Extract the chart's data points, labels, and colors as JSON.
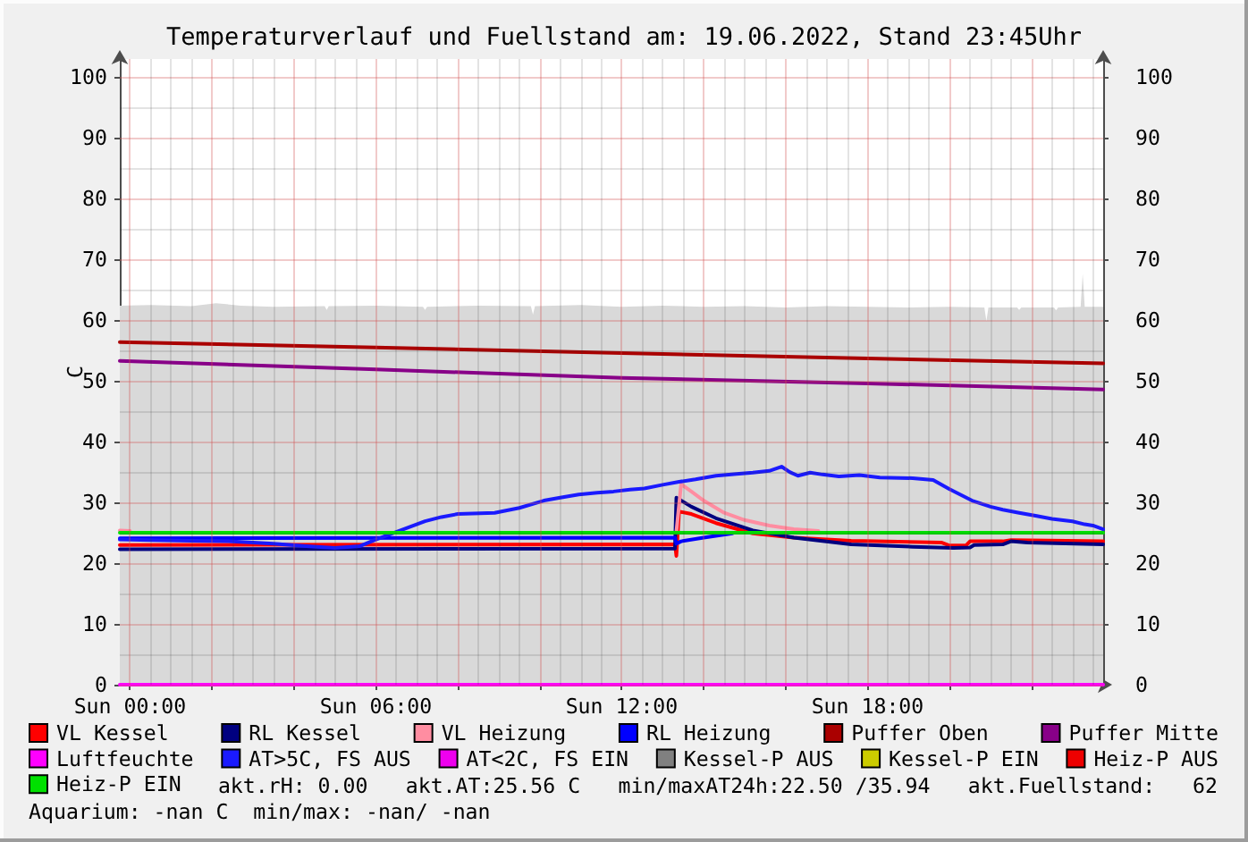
{
  "chart_data": {
    "type": "line",
    "title": "Temperaturverlauf und Fuellstand am: 19.06.2022, Stand 23:45Uhr",
    "ylabel": "C",
    "xlim": [
      "2022-06-18T23:45",
      "2022-06-19T23:45"
    ],
    "xticks": [
      {
        "value": "2022-06-19T00:00",
        "label": "Sun 00:00"
      },
      {
        "value": "2022-06-19T02:00",
        "label": null
      },
      {
        "value": "2022-06-19T04:00",
        "label": null
      },
      {
        "value": "2022-06-19T06:00",
        "label": "Sun 06:00"
      },
      {
        "value": "2022-06-19T08:00",
        "label": null
      },
      {
        "value": "2022-06-19T10:00",
        "label": null
      },
      {
        "value": "2022-06-19T12:00",
        "label": "Sun 12:00"
      },
      {
        "value": "2022-06-19T14:00",
        "label": null
      },
      {
        "value": "2022-06-19T16:00",
        "label": null
      },
      {
        "value": "2022-06-19T18:00",
        "label": "Sun 18:00"
      },
      {
        "value": "2022-06-19T20:00",
        "label": null
      },
      {
        "value": "2022-06-19T22:00",
        "label": null
      }
    ],
    "ylim": [
      0,
      103
    ],
    "yticks": [
      0,
      10,
      20,
      30,
      40,
      50,
      60,
      70,
      80,
      90,
      100
    ],
    "y2lim": [
      0,
      103
    ],
    "y2ticks": [
      0,
      10,
      20,
      30,
      40,
      50,
      60,
      70,
      80,
      90,
      100
    ],
    "grid": true,
    "legend": "bottom",
    "series": [
      {
        "type": "area",
        "color": "#d9d9d9",
        "x": [
          "2022-06-18T23:45",
          "2022-06-19T00:30",
          "2022-06-19T01:30",
          "2022-06-19T02:06",
          "2022-06-19T02:42",
          "2022-06-19T03:30",
          "2022-06-19T04:45",
          "2022-06-19T04:48",
          "2022-06-19T04:51",
          "2022-06-19T06:00",
          "2022-06-19T07:09",
          "2022-06-19T07:12",
          "2022-06-19T07:15",
          "2022-06-19T08:30",
          "2022-06-19T09:47",
          "2022-06-19T09:50",
          "2022-06-19T09:53",
          "2022-06-19T11:00",
          "2022-06-19T12:00",
          "2022-06-19T13:00",
          "2022-06-19T14:00",
          "2022-06-19T15:00",
          "2022-06-19T16:00",
          "2022-06-19T17:00",
          "2022-06-19T18:00",
          "2022-06-19T19:00",
          "2022-06-19T20:00",
          "2022-06-19T20:51",
          "2022-06-19T20:54",
          "2022-06-19T20:57",
          "2022-06-19T21:39",
          "2022-06-19T21:42",
          "2022-06-19T21:45",
          "2022-06-19T22:33",
          "2022-06-19T22:36",
          "2022-06-19T22:39",
          "2022-06-19T23:12",
          "2022-06-19T23:15",
          "2022-06-19T23:18",
          "2022-06-19T23:45"
        ],
        "values": [
          62.4,
          62.5,
          62.3,
          62.8,
          62.4,
          62.2,
          62.3,
          61.7,
          62.3,
          62.4,
          62.2,
          61.7,
          62.2,
          62.4,
          62.3,
          60.9,
          62.3,
          62.5,
          62.2,
          62.4,
          62.2,
          62.3,
          62.1,
          62.3,
          62.2,
          62.1,
          62.2,
          62.1,
          59.9,
          62.1,
          62.1,
          61.7,
          62.1,
          62.1,
          61.6,
          62.1,
          62.2,
          67.6,
          62.2,
          62.2
        ]
      },
      {
        "name": "VL Kessel",
        "color": "#ff0000",
        "x": [
          "2022-06-18T23:45",
          "2022-06-19T13:18",
          "2022-06-19T13:20",
          "2022-06-19T13:24",
          "2022-06-19T13:42",
          "2022-06-19T14:18",
          "2022-06-19T15:12",
          "2022-06-19T16:12",
          "2022-06-19T17:36",
          "2022-06-19T19:48",
          "2022-06-19T20:00",
          "2022-06-19T20:24",
          "2022-06-19T20:30",
          "2022-06-19T21:18",
          "2022-06-19T21:30",
          "2022-06-19T23:45"
        ],
        "values": [
          23.0,
          23.1,
          21.2,
          28.5,
          28.1,
          26.6,
          24.9,
          24.2,
          23.7,
          23.4,
          22.9,
          22.9,
          23.6,
          23.6,
          23.8,
          23.6
        ]
      },
      {
        "name": "RL Kessel",
        "color": "#000080",
        "x": [
          "2022-06-18T23:45",
          "2022-06-19T13:18",
          "2022-06-19T13:20",
          "2022-06-19T13:42",
          "2022-06-19T14:18",
          "2022-06-19T15:12",
          "2022-06-19T16:12",
          "2022-06-19T17:36",
          "2022-06-19T19:06",
          "2022-06-19T20:06",
          "2022-06-19T20:30",
          "2022-06-19T20:36",
          "2022-06-19T21:18",
          "2022-06-19T21:30",
          "2022-06-19T21:54",
          "2022-06-19T23:45"
        ],
        "values": [
          22.3,
          22.4,
          30.8,
          29.3,
          27.4,
          25.4,
          24.2,
          23.1,
          22.7,
          22.5,
          22.6,
          23.0,
          23.1,
          23.6,
          23.4,
          23.1
        ]
      },
      {
        "name": "VL Heizung",
        "color": "#ff8da1",
        "x": [
          "2022-06-18T23:45",
          "2022-06-19T00:00",
          "2022-06-19T06:00",
          "2022-06-19T13:20",
          "2022-06-19T13:27",
          "2022-06-19T13:42",
          "2022-06-19T14:00",
          "2022-06-19T14:30",
          "2022-06-19T15:00",
          "2022-06-19T15:36",
          "2022-06-19T16:12",
          "2022-06-19T16:48"
        ],
        "values": [
          25.4,
          25.3,
          null,
          25.2,
          33.0,
          31.8,
          30.3,
          28.3,
          27.1,
          26.2,
          25.6,
          25.3
        ]
      },
      {
        "name": "RL Heizung",
        "color": "#0000ff",
        "x": [
          "2022-06-18T23:45",
          "2022-06-19T13:18",
          "2022-06-19T13:20",
          "2022-06-19T13:27",
          "2022-06-19T14:00",
          "2022-06-19T14:42"
        ],
        "values": [
          24.1,
          24.2,
          23.2,
          23.6,
          24.2,
          24.9
        ]
      },
      {
        "name": "Puffer Oben",
        "color": "#aa0000",
        "x": [
          "2022-06-18T23:45",
          "2022-06-19T06:00",
          "2022-06-19T12:00",
          "2022-06-19T18:00",
          "2022-06-19T23:45"
        ],
        "values": [
          56.4,
          55.5,
          54.6,
          53.7,
          52.9
        ]
      },
      {
        "name": "Puffer Mitte",
        "color": "#880088",
        "x": [
          "2022-06-18T23:45",
          "2022-06-19T06:00",
          "2022-06-19T12:00",
          "2022-06-19T18:00",
          "2022-06-19T23:45"
        ],
        "values": [
          53.3,
          51.9,
          50.5,
          49.6,
          48.6
        ]
      },
      {
        "name": "Luftfeuchte",
        "color": "#ff00ff",
        "x": [
          "2022-06-18T23:45",
          "2022-06-19T23:45"
        ],
        "values": [
          0,
          0
        ]
      },
      {
        "name": "AT>5C, FS AUS",
        "color": "#1a1aff",
        "x": [
          "2022-06-18T23:45",
          "2022-06-19T00:30",
          "2022-06-19T01:30",
          "2022-06-19T02:24",
          "2022-06-19T03:30",
          "2022-06-19T04:18",
          "2022-06-19T05:00",
          "2022-06-19T05:36",
          "2022-06-19T06:00",
          "2022-06-19T06:36",
          "2022-06-19T07:12",
          "2022-06-19T07:36",
          "2022-06-19T08:00",
          "2022-06-19T08:54",
          "2022-06-19T09:30",
          "2022-06-19T10:06",
          "2022-06-19T10:30",
          "2022-06-19T10:57",
          "2022-06-19T11:24",
          "2022-06-19T11:48",
          "2022-06-19T12:12",
          "2022-06-19T12:33",
          "2022-06-19T13:00",
          "2022-06-19T13:24",
          "2022-06-19T13:48",
          "2022-06-19T14:18",
          "2022-06-19T14:48",
          "2022-06-19T15:12",
          "2022-06-19T15:36",
          "2022-06-19T15:54",
          "2022-06-19T16:06",
          "2022-06-19T16:18",
          "2022-06-19T16:36",
          "2022-06-19T16:54",
          "2022-06-19T17:18",
          "2022-06-19T17:48",
          "2022-06-19T18:18",
          "2022-06-19T19:06",
          "2022-06-19T19:36",
          "2022-06-19T20:00",
          "2022-06-19T20:33",
          "2022-06-19T21:00",
          "2022-06-19T21:18",
          "2022-06-19T21:42",
          "2022-06-19T22:06",
          "2022-06-19T22:30",
          "2022-06-19T23:00",
          "2022-06-19T23:18",
          "2022-06-19T23:30",
          "2022-06-19T23:45"
        ],
        "values": [
          23.9,
          23.8,
          23.7,
          23.6,
          23.2,
          22.8,
          22.5,
          22.8,
          23.9,
          25.4,
          26.9,
          27.6,
          28.1,
          28.3,
          29.1,
          30.3,
          30.8,
          31.3,
          31.6,
          31.8,
          32.1,
          32.3,
          32.9,
          33.4,
          33.8,
          34.4,
          34.7,
          34.9,
          35.2,
          35.9,
          35.0,
          34.4,
          34.9,
          34.6,
          34.3,
          34.5,
          34.1,
          34.0,
          33.7,
          32.2,
          30.3,
          29.3,
          28.8,
          28.3,
          27.8,
          27.3,
          26.9,
          26.4,
          26.2,
          25.6
        ]
      },
      {
        "name": "AT<2C, FS EIN",
        "color": "#ee00ee"
      },
      {
        "name": "Kessel-P AUS",
        "color": "#808080"
      },
      {
        "name": "Kessel-P EIN",
        "color": "#cccc00"
      },
      {
        "name": "Heiz-P AUS",
        "color": "#ee0000"
      },
      {
        "name": "Heiz-P EIN",
        "color": "#00e000",
        "x": [
          "2022-06-18T23:45",
          "2022-06-19T23:45"
        ],
        "values": [
          25,
          25
        ]
      }
    ],
    "annotations": [
      "akt.rH: 0.00",
      "akt.AT:25.56 C",
      "min/maxAT24h:22.50 /35.94",
      "akt.Fuellstand:   62",
      "Aquarium: -nan C  min/max: -nan/ -nan"
    ]
  }
}
